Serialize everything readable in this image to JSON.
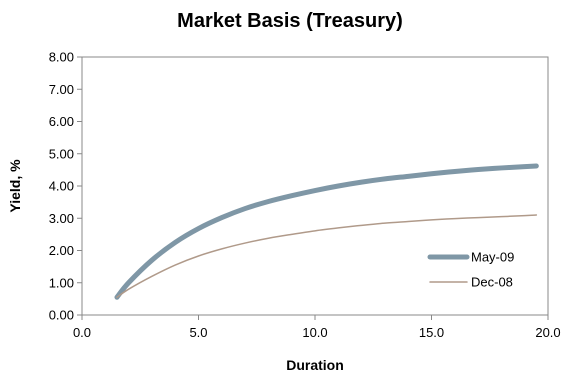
{
  "chart_data": {
    "type": "line",
    "title": "Market Basis (Treasury)",
    "xlabel": "Duration",
    "ylabel": "Yield, %",
    "xlim": [
      0,
      20
    ],
    "ylim": [
      0,
      8
    ],
    "x_ticks": [
      "0.0",
      "5.0",
      "10.0",
      "15.0",
      "20.0"
    ],
    "y_ticks": [
      "0.00",
      "1.00",
      "2.00",
      "3.00",
      "4.00",
      "5.00",
      "6.00",
      "7.00",
      "8.00"
    ],
    "grid": false,
    "legend_position": "bottom-right",
    "series": [
      {
        "name": "May-09",
        "color": "#7f97a6",
        "x": [
          1.5,
          2.0,
          3.0,
          4.0,
          5.0,
          6.0,
          7.0,
          8.0,
          9.0,
          10.0,
          11.0,
          12.0,
          13.0,
          14.0,
          15.0,
          16.0,
          17.0,
          18.0,
          19.0,
          19.5
        ],
        "y": [
          0.55,
          1.0,
          1.7,
          2.25,
          2.68,
          3.02,
          3.3,
          3.52,
          3.7,
          3.86,
          4.0,
          4.12,
          4.22,
          4.3,
          4.38,
          4.45,
          4.51,
          4.56,
          4.6,
          4.62
        ]
      },
      {
        "name": "Dec-08",
        "color": "#b09a8a",
        "x": [
          1.5,
          2.0,
          3.0,
          4.0,
          5.0,
          6.0,
          7.0,
          8.0,
          9.0,
          10.0,
          11.0,
          12.0,
          13.0,
          14.0,
          15.0,
          16.0,
          17.0,
          18.0,
          19.0,
          19.5
        ],
        "y": [
          0.55,
          0.8,
          1.2,
          1.55,
          1.83,
          2.05,
          2.23,
          2.38,
          2.5,
          2.61,
          2.7,
          2.78,
          2.85,
          2.9,
          2.95,
          2.99,
          3.02,
          3.05,
          3.08,
          3.1
        ]
      }
    ]
  }
}
